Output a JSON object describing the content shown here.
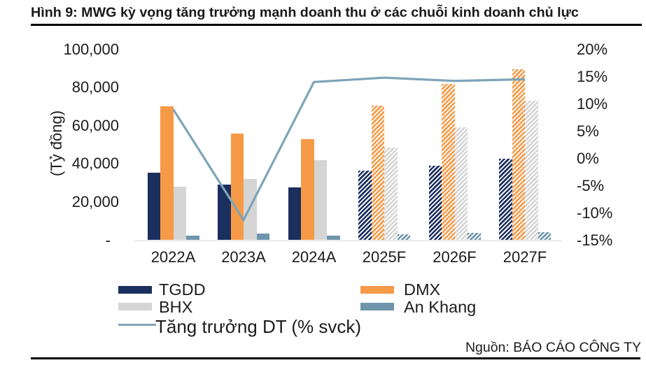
{
  "figure": {
    "title": "Hình 9: MWG kỳ vọng tăng trưởng mạnh doanh thu ở các chuỗi kinh doanh chủ lực",
    "source": "Nguồn: BÁO CÁO CÔNG TY"
  },
  "chart_data": {
    "type": "bar+line",
    "categories": [
      "2022A",
      "2023A",
      "2024A",
      "2025F",
      "2026F",
      "2027F"
    ],
    "forecast_start_index": 3,
    "series": [
      {
        "name": "TGDD",
        "type": "bar",
        "color": "#1B2F5F",
        "values": [
          35500,
          29000,
          27500,
          36500,
          39000,
          42500
        ]
      },
      {
        "name": "DMX",
        "type": "bar",
        "color": "#F69A47",
        "values": [
          70000,
          56000,
          53000,
          70500,
          82000,
          89500
        ]
      },
      {
        "name": "BHX",
        "type": "bar",
        "color": "#D5D5D5",
        "values": [
          28000,
          32000,
          42000,
          48500,
          59000,
          73000
        ]
      },
      {
        "name": "An Khang",
        "type": "bar",
        "color": "#6E95AB",
        "values": [
          2300,
          3500,
          2500,
          3000,
          4000,
          4300
        ]
      },
      {
        "name": "Tăng trưởng DT (% svck)",
        "type": "line",
        "axis": "right",
        "color": "#7EA4B8",
        "values": [
          9,
          -11.3,
          14,
          14.8,
          14.2,
          14.5
        ]
      }
    ],
    "left_axis": {
      "label": "(Tỷ đồng)",
      "ticks": [
        "100,000",
        "80,000",
        "60,000",
        "40,000",
        "20,000",
        "-"
      ],
      "max": 100000,
      "min": 0
    },
    "right_axis": {
      "ticks": [
        "20%",
        "15%",
        "10%",
        "5%",
        "0%",
        "-5%",
        "-10%",
        "-15%"
      ],
      "max": 20,
      "min": -15
    },
    "legend_rows": [
      [
        "TGDD",
        "DMX"
      ],
      [
        "BHX",
        "An Khang"
      ],
      [
        "Tăng trưởng DT (% svck)"
      ]
    ]
  }
}
